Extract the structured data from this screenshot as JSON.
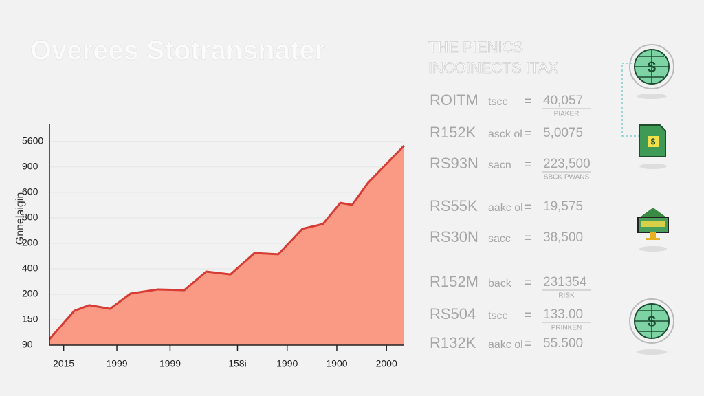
{
  "chart_data": {
    "type": "area",
    "title": "Overees Stotransnater",
    "ylabel": "Gnnelaigin",
    "x": [
      0,
      0.7,
      1.12,
      1.71,
      2.29,
      3.06,
      3.8,
      4.42,
      5.1,
      5.78,
      6.45,
      7.13,
      7.71,
      8.2,
      8.53,
      8.98,
      10
    ],
    "values": [
      0.24,
      1.35,
      1.57,
      1.43,
      2.03,
      2.19,
      2.16,
      2.89,
      2.78,
      3.62,
      3.57,
      4.57,
      4.76,
      5.59,
      5.51,
      6.38,
      7.84
    ],
    "color": "#fa9a84",
    "line_color": "#d63c34",
    "xlim": [
      0,
      10
    ],
    "xticks": [
      {
        "value": 0.4,
        "label": "2015"
      },
      {
        "value": 1.9,
        "label": "1999"
      },
      {
        "value": 3.4,
        "label": "1999"
      },
      {
        "value": 5.3,
        "label": "158i"
      },
      {
        "value": 6.7,
        "label": "1990"
      },
      {
        "value": 8.1,
        "label": "1900"
      },
      {
        "value": 9.5,
        "label": "2000"
      }
    ],
    "ylim": [
      0,
      8.7
    ],
    "yticks": [
      {
        "value": 0,
        "label": "90"
      },
      {
        "value": 1,
        "label": "150"
      },
      {
        "value": 2,
        "label": "200"
      },
      {
        "value": 3,
        "label": "400"
      },
      {
        "value": 4,
        "label": "200"
      },
      {
        "value": 5,
        "label": "800"
      },
      {
        "value": 6,
        "label": "600"
      },
      {
        "value": 7,
        "label": "900"
      },
      {
        "value": 8,
        "label": "5600"
      }
    ],
    "grid": true
  },
  "panel": {
    "heading": [
      "THE PIENICS",
      "INCOINECTS ITAX"
    ],
    "rows": [
      {
        "label": "ROITM",
        "text": "tscc",
        "sign": "=",
        "value": "40,057",
        "note": "PIAKER"
      },
      {
        "label": "R152K",
        "text": "asck ol",
        "sign": "=",
        "value": "5,0075"
      },
      {
        "label": "RS93N",
        "text": "sacn",
        "sign": "=",
        "value": "223,500",
        "note": "SBCK PWANS"
      },
      {
        "label": "RS55K",
        "text": "aakc ol",
        "sign": "=",
        "value": "19,575"
      },
      {
        "label": "RS30N",
        "text": "sacc",
        "sign": "=",
        "value": "38,500"
      },
      {
        "label": "R152M",
        "text": "back",
        "sign": "=",
        "value": "231354",
        "note": "RISK"
      },
      {
        "label": "RS504",
        "text": "tscc",
        "sign": "=",
        "value": "133.00",
        "note": "PRINKEN"
      },
      {
        "label": "R132K",
        "text": "aakc ol",
        "sign": "=",
        "value": "55.500"
      }
    ]
  }
}
